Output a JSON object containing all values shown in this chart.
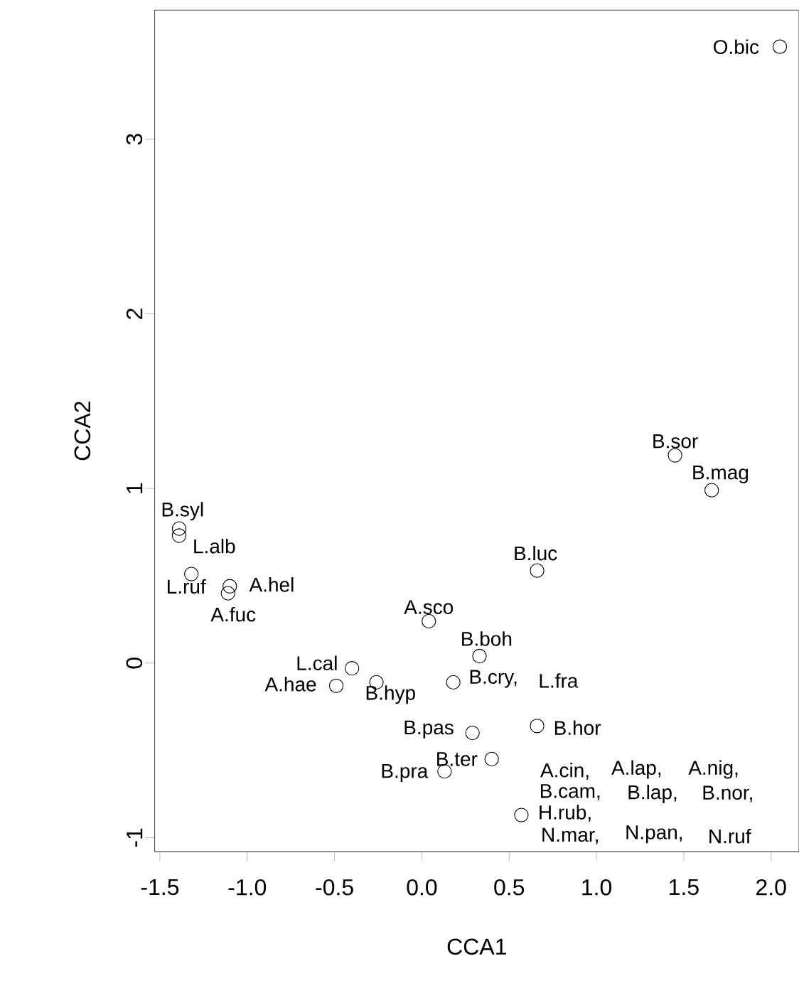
{
  "chart_data": {
    "type": "scatter",
    "xlabel": "CCA1",
    "ylabel": "CCA2",
    "marker": "circle",
    "xlim": [
      -1.53,
      2.16
    ],
    "ylim": [
      -1.08,
      3.74
    ],
    "xticks": [
      {
        "value": -1.5,
        "label": "-1.5"
      },
      {
        "value": -1.0,
        "label": "-1.0"
      },
      {
        "value": -0.5,
        "label": "-0.5"
      },
      {
        "value": 0,
        "label": "0.0"
      },
      {
        "value": 0.5,
        "label": "0.5"
      },
      {
        "value": 1.0,
        "label": "1.0"
      },
      {
        "value": 1.5,
        "label": "1.5"
      },
      {
        "value": 2.0,
        "label": "2.0"
      }
    ],
    "yticks": [
      -1,
      0,
      1,
      2,
      3
    ],
    "series": [
      {
        "color": "#000000",
        "x": [
          2.05,
          1.45,
          1.66,
          0.66,
          -1.39,
          -1.39,
          -1.32,
          -1.1,
          -1.11,
          0.04,
          0.33,
          -0.4,
          -0.49,
          -0.26,
          0.18,
          0.29,
          0.66,
          0.4,
          0.13,
          0.57
        ],
        "values": [
          3.53,
          1.19,
          0.99,
          0.53,
          0.77,
          0.73,
          0.51,
          0.44,
          0.4,
          0.24,
          0.04,
          -0.03,
          -0.13,
          -0.11,
          -0.11,
          -0.4,
          -0.36,
          -0.55,
          -0.62,
          -0.87
        ]
      }
    ],
    "annotations": [
      {
        "text": "O.bic",
        "x": 2.05,
        "y": 3.53
      },
      {
        "text": "B.sor",
        "x": 1.45,
        "y": 1.19
      },
      {
        "text": "B.mag",
        "x": 1.66,
        "y": 0.99
      },
      {
        "text": "B.luc",
        "x": 0.66,
        "y": 0.53
      },
      {
        "text": "B.syl",
        "x": -1.39,
        "y": 0.77
      },
      {
        "text": "L.alb",
        "x": -1.39,
        "y": 0.73
      },
      {
        "text": "L.ruf",
        "x": -1.32,
        "y": 0.51
      },
      {
        "text": "A.hel",
        "x": -1.1,
        "y": 0.44
      },
      {
        "text": "A.fuc",
        "x": -1.11,
        "y": 0.4
      },
      {
        "text": "A.sco",
        "x": 0.04,
        "y": 0.24
      },
      {
        "text": "B.boh",
        "x": 0.33,
        "y": 0.04
      },
      {
        "text": "L.cal",
        "x": -0.4,
        "y": -0.03
      },
      {
        "text": "A.hae",
        "x": -0.49,
        "y": -0.13
      },
      {
        "text": "B.hyp",
        "x": -0.26,
        "y": -0.11
      },
      {
        "text": "B.cry,",
        "x": 0.18,
        "y": -0.11
      },
      "L.fra",
      {
        "text": "B.pas",
        "x": 0.29,
        "y": -0.4
      },
      {
        "text": "B.hor",
        "x": 0.66,
        "y": -0.36
      },
      {
        "text": "B.ter",
        "x": 0.4,
        "y": -0.55
      },
      {
        "text": "B.pra",
        "x": 0.13,
        "y": -0.62
      },
      {
        "text": "A.cin,",
        "x": 0.57,
        "y": -0.87
      },
      "A.lap,",
      "A.nig,",
      {
        "text": "B.cam,",
        "x": 0.57,
        "y": -0.87
      },
      "B.lap,",
      "B.nor,",
      {
        "text": "H.rub,",
        "x": 0.57,
        "y": -0.87
      },
      {
        "text": "N.mar,",
        "x": 0.57,
        "y": -0.87
      },
      "N.pan,",
      "N.ruf"
    ]
  }
}
